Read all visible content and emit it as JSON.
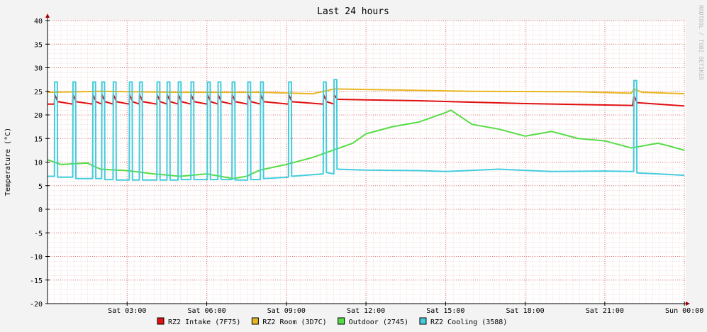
{
  "chart_data": {
    "type": "line",
    "title": "Last 24 hours",
    "y_label": "Temperature (°C)",
    "credit": "RRDTOOL / TOBI OETIKER",
    "xlim": [
      0,
      24.05
    ],
    "ylim": [
      -20,
      40
    ],
    "yticks": [
      -20,
      -15,
      -10,
      -5,
      0,
      5,
      10,
      15,
      20,
      25,
      30,
      35,
      40
    ],
    "xticks": [
      {
        "value": 3,
        "label": "Sat 03:00"
      },
      {
        "value": 6,
        "label": "Sat 06:00"
      },
      {
        "value": 9,
        "label": "Sat 09:00"
      },
      {
        "value": 12,
        "label": "Sat 12:00"
      },
      {
        "value": 15,
        "label": "Sat 15:00"
      },
      {
        "value": 18,
        "label": "Sat 18:00"
      },
      {
        "value": 21,
        "label": "Sat 21:00"
      },
      {
        "value": 24,
        "label": "Sun 00:00"
      }
    ],
    "grid": true,
    "series": [
      {
        "name": "RZ2 Intake (7F75)",
        "color": "#e01010",
        "x": [
          0,
          0.26,
          0.27,
          0.39,
          0.95,
          0.96,
          1.08,
          1.7,
          1.71,
          1.83,
          2.04,
          2.05,
          2.17,
          2.47,
          2.48,
          2.6,
          3.08,
          3.09,
          3.21,
          3.46,
          3.47,
          3.59,
          4.12,
          4.13,
          4.25,
          4.5,
          4.51,
          4.63,
          4.92,
          4.93,
          5.05,
          5.4,
          5.41,
          5.53,
          6.02,
          6.03,
          6.15,
          6.42,
          6.43,
          6.55,
          6.95,
          6.96,
          7.08,
          7.54,
          7.55,
          7.67,
          8.02,
          8.03,
          8.15,
          9.08,
          9.09,
          9.21,
          10.39,
          10.4,
          10.52,
          10.79,
          10.8,
          10.92,
          14,
          18,
          22.05,
          22.1,
          22.22,
          24
        ],
        "values": [
          22.3,
          22.3,
          24.3,
          22.8,
          22.3,
          24.3,
          22.8,
          22.3,
          24.3,
          22.8,
          22.3,
          24.3,
          22.8,
          22.3,
          24.3,
          22.8,
          22.3,
          24.3,
          22.8,
          22.3,
          24.3,
          22.8,
          22.3,
          24.3,
          22.8,
          22.3,
          24.3,
          22.8,
          22.3,
          24.3,
          22.8,
          22.3,
          24.3,
          22.8,
          22.3,
          24.3,
          22.8,
          22.3,
          24.3,
          22.8,
          22.3,
          24.3,
          22.8,
          22.3,
          24.3,
          22.8,
          22.3,
          24.3,
          22.8,
          22.3,
          24.3,
          22.8,
          22.3,
          24.3,
          22.8,
          22.3,
          24.3,
          23.3,
          23.0,
          22.4,
          22.0,
          24.0,
          22.6,
          21.9
        ]
      },
      {
        "name": "RZ2 Room (3D7C)",
        "color": "#e8b620",
        "x": [
          0,
          2,
          5,
          8,
          10,
          10.8,
          13,
          16,
          20,
          22,
          22.1,
          22.4,
          24
        ],
        "values": [
          24.8,
          25.0,
          24.8,
          24.8,
          24.5,
          25.5,
          25.3,
          25.0,
          24.9,
          24.6,
          25.5,
          24.8,
          24.5
        ]
      },
      {
        "name": "Outdoor (2745)",
        "color": "#55dd44",
        "x": [
          0,
          0.5,
          1.5,
          2,
          3,
          4,
          5,
          6,
          7,
          7.5,
          8,
          9,
          10,
          11,
          11.5,
          12,
          13,
          14,
          15,
          15.2,
          16,
          17,
          18,
          19,
          20,
          21,
          22,
          23,
          23.5,
          24
        ],
        "values": [
          10.5,
          9.5,
          9.8,
          8.5,
          8.2,
          7.5,
          7.0,
          7.5,
          6.5,
          7.0,
          8.3,
          9.5,
          11.0,
          13.0,
          14.0,
          16.0,
          17.5,
          18.5,
          20.5,
          21.0,
          18.0,
          17.0,
          15.5,
          16.5,
          15.0,
          14.5,
          13.0,
          14.0,
          13.3,
          12.5
        ]
      },
      {
        "name": "RZ2 Cooling (3588)",
        "color": "#44ccdd",
        "x": [
          0,
          0.26,
          0.27,
          0.37,
          0.38,
          0.95,
          0.96,
          1.06,
          1.07,
          1.7,
          1.71,
          1.81,
          1.82,
          2.04,
          2.05,
          2.15,
          2.16,
          2.47,
          2.48,
          2.58,
          2.59,
          3.08,
          3.09,
          3.19,
          3.2,
          3.46,
          3.47,
          3.57,
          3.58,
          4.12,
          4.13,
          4.23,
          4.24,
          4.5,
          4.51,
          4.61,
          4.62,
          4.92,
          4.93,
          5.03,
          5.04,
          5.4,
          5.41,
          5.51,
          5.52,
          6.02,
          6.03,
          6.13,
          6.14,
          6.42,
          6.43,
          6.53,
          6.54,
          6.95,
          6.96,
          7.06,
          7.07,
          7.54,
          7.55,
          7.65,
          7.66,
          8.02,
          8.03,
          8.13,
          8.14,
          9.08,
          9.09,
          9.19,
          9.2,
          10.39,
          10.4,
          10.5,
          10.51,
          10.79,
          10.8,
          10.9,
          10.91,
          12,
          14,
          15,
          17,
          19,
          21,
          22.09,
          22.1,
          22.2,
          22.21,
          23,
          24
        ],
        "values": [
          7.0,
          7.0,
          27,
          27,
          6.8,
          6.8,
          27,
          27,
          6.5,
          6.5,
          27,
          27,
          6.5,
          6.5,
          27,
          27,
          6.3,
          6.3,
          27,
          27,
          6.2,
          6.2,
          27,
          27,
          6.2,
          6.2,
          27,
          27,
          6.2,
          6.2,
          27,
          27,
          6.2,
          6.2,
          27,
          27,
          6.2,
          6.2,
          27,
          27,
          6.3,
          6.3,
          27,
          27,
          6.3,
          6.3,
          27,
          27,
          6.3,
          6.3,
          27,
          27,
          6.3,
          6.3,
          27,
          27,
          6.2,
          6.2,
          27,
          27,
          6.3,
          6.3,
          27,
          27,
          6.5,
          6.8,
          27,
          27,
          7.0,
          7.5,
          27,
          27,
          7.8,
          7.5,
          27.5,
          27.5,
          8.5,
          8.3,
          8.2,
          8.0,
          8.5,
          8.0,
          8.1,
          8.0,
          27.3,
          27.3,
          7.7,
          7.5,
          7.2
        ]
      }
    ]
  }
}
